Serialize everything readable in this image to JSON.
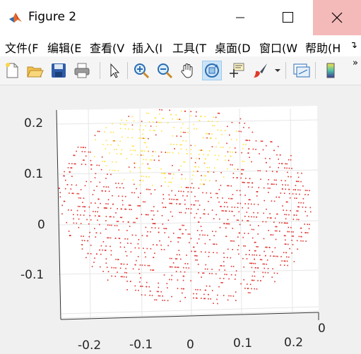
{
  "window": {
    "title": "Figure 2"
  },
  "menu": {
    "items": [
      "文件(F",
      "编辑(E",
      "查看(V",
      "插入(I",
      "工具(T",
      "桌面(D",
      "窗口(W",
      "帮助(H"
    ]
  },
  "toolbar": {
    "buttons": [
      "new-figure-icon",
      "open-file-icon",
      "save-icon",
      "print-icon",
      "select-arrow-icon",
      "zoom-in-icon",
      "zoom-out-icon",
      "pan-hand-icon",
      "rotate-3d-icon",
      "data-cursor-icon",
      "brush-icon",
      "brush-dropdown-icon",
      "link-plot-icon",
      "colorbar-icon"
    ],
    "active": "rotate-3d-icon"
  },
  "colors": {
    "close_button": "#f4b9b9",
    "marker_red": "#e0302a",
    "marker_yellow": "#ffe23a",
    "toolbar_active": "#cce4f7"
  },
  "chart_data": {
    "type": "scatter",
    "title": "",
    "xlabel": "",
    "ylabel": "",
    "x_ticks": [
      "-0.2",
      "-0.1",
      "0",
      "0.1",
      "0.2"
    ],
    "y_ticks": [
      "0.2",
      "0.1",
      "0",
      "-0.1"
    ],
    "z_ticks": [
      "0"
    ],
    "xlim": [
      -0.27,
      0.25
    ],
    "ylim": [
      -0.17,
      0.22
    ],
    "grid": true,
    "view": "3d-rotated",
    "point_cloud": {
      "description_region": "roughly circular cloud of small dots, warm yellow near upper-center, red elsewhere",
      "approx_point_count": 1400
    }
  }
}
